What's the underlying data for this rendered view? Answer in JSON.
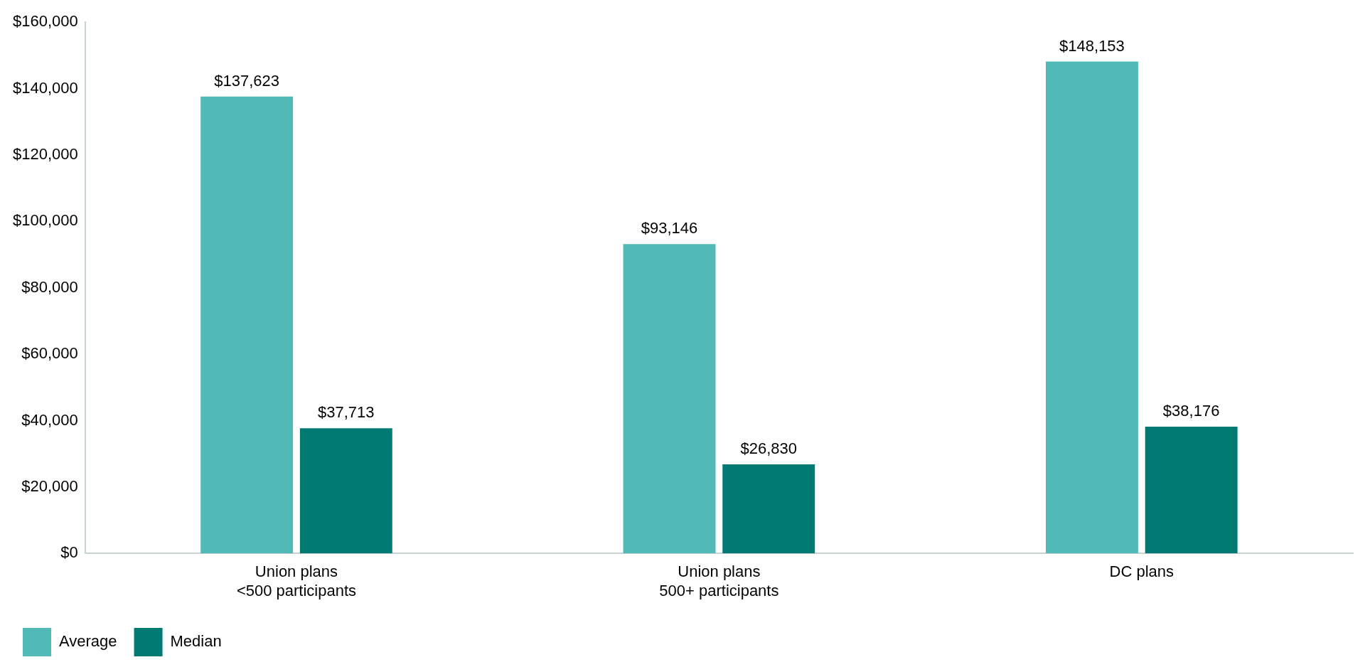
{
  "chart_data": {
    "type": "bar",
    "categories": [
      "Union plans\n<500 participants",
      "Union plans\n500+ participants",
      "DC plans"
    ],
    "series": [
      {
        "name": "Average",
        "color": "#52bab6",
        "values": [
          137623,
          93146,
          148153
        ],
        "value_labels": [
          "$137,623",
          "$93,146",
          "$148,153"
        ]
      },
      {
        "name": "Median",
        "color": "#007a72",
        "values": [
          37713,
          26830,
          38176
        ],
        "value_labels": [
          "$37,713",
          "$26,830",
          "$38,176"
        ]
      }
    ],
    "ylim": [
      0,
      160000
    ],
    "yticks": [
      {
        "value": 0,
        "label": "$0"
      },
      {
        "value": 20000,
        "label": "$20,000"
      },
      {
        "value": 40000,
        "label": "$40,000"
      },
      {
        "value": 60000,
        "label": "$60,000"
      },
      {
        "value": 80000,
        "label": "$80,000"
      },
      {
        "value": 100000,
        "label": "$100,000"
      },
      {
        "value": 120000,
        "label": "$120,000"
      },
      {
        "value": 140000,
        "label": "$140,000"
      },
      {
        "value": 160000,
        "label": "$160,000"
      }
    ],
    "grid": false,
    "legend": "bottom left"
  }
}
